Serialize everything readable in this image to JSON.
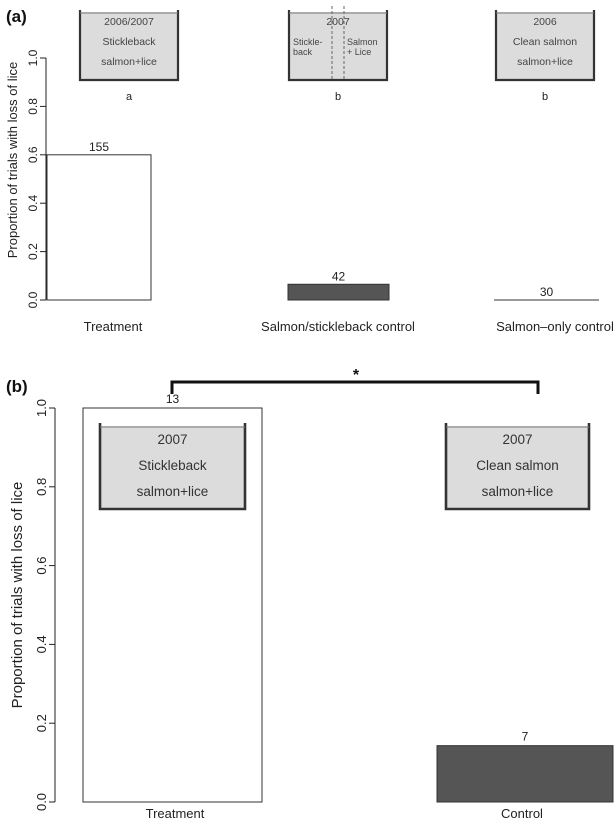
{
  "chart_data": [
    {
      "panel": "(a)",
      "type": "bar",
      "ylabel": "Proportion of trials with loss of lice",
      "ylim": [
        0,
        1.0
      ],
      "yticks": [
        "0.0",
        "0.2",
        "0.4",
        "0.6",
        "0.8",
        "1.0"
      ],
      "categories": [
        "Treatment",
        "Salmon/stickleback control",
        "Salmon–only control"
      ],
      "values": [
        0.6,
        0.065,
        0.0
      ],
      "bar_labels": [
        "155",
        "42",
        "30"
      ],
      "bar_colors": [
        "#ffffff",
        "#555555",
        "#555555"
      ],
      "letters": [
        "a",
        "b",
        "b"
      ],
      "tanks": [
        {
          "lines": [
            "2006/2007",
            "Stickleback",
            "salmon+lice"
          ]
        },
        {
          "year": "2007",
          "left": [
            "Stickle-",
            "back"
          ],
          "right": [
            "Salmon",
            "+ Lice"
          ],
          "divided": true
        },
        {
          "lines": [
            "2006",
            "Clean salmon",
            "salmon+lice"
          ]
        }
      ]
    },
    {
      "panel": "(b)",
      "type": "bar",
      "ylabel": "Proportion of trials with loss of lice",
      "ylim": [
        0,
        1.0
      ],
      "yticks": [
        "0.0",
        "0.2",
        "0.4",
        "0.6",
        "0.8",
        "1.0"
      ],
      "categories": [
        "Treatment",
        "Control"
      ],
      "values": [
        1.0,
        0.143
      ],
      "bar_labels": [
        "13",
        "7"
      ],
      "bar_colors": [
        "#ffffff",
        "#555555"
      ],
      "significance": "*",
      "tanks": [
        {
          "lines": [
            "2007",
            "Stickleback",
            "salmon+lice"
          ]
        },
        {
          "lines": [
            "2007",
            "Clean salmon",
            "salmon+lice"
          ]
        }
      ]
    }
  ]
}
